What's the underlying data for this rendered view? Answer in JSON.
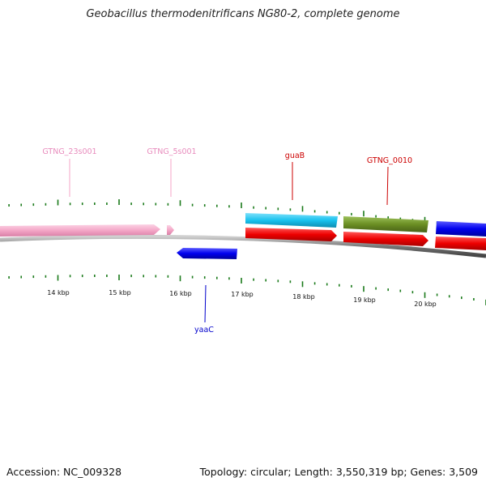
{
  "title": "Geobacillus thermodenitrificans NG80-2, complete genome",
  "footer": {
    "accession": "Accession: NC_009328",
    "summary": "Topology: circular; Length: 3,550,319 bp; Genes: 3,509"
  },
  "colors": {
    "rrna": "#f4a6c7",
    "rrna_label": "#e88cbd",
    "red_gene": "#ee0000",
    "red_label": "#cc0000",
    "cyan_gene": "#19c2ee",
    "olive_gene": "#6b8e23",
    "blue_gene": "#0000ee",
    "blue_label": "#0000cc",
    "ticks": "#1a7a1a",
    "backbone": "#8a8a8a"
  },
  "ruler_labels": [
    "14 kbp",
    "15 kbp",
    "16 kbp",
    "17 kbp",
    "18 kbp",
    "19 kbp",
    "20 kbp"
  ],
  "gene_labels": [
    {
      "text": "GTNG_23s001",
      "color": "rrna_label"
    },
    {
      "text": "GTNG_5s001",
      "color": "rrna_label"
    },
    {
      "text": "guaB",
      "color": "red_label"
    },
    {
      "text": "GTNG_0010",
      "color": "red_label"
    },
    {
      "text": "yaaC",
      "color": "blue_label"
    }
  ]
}
